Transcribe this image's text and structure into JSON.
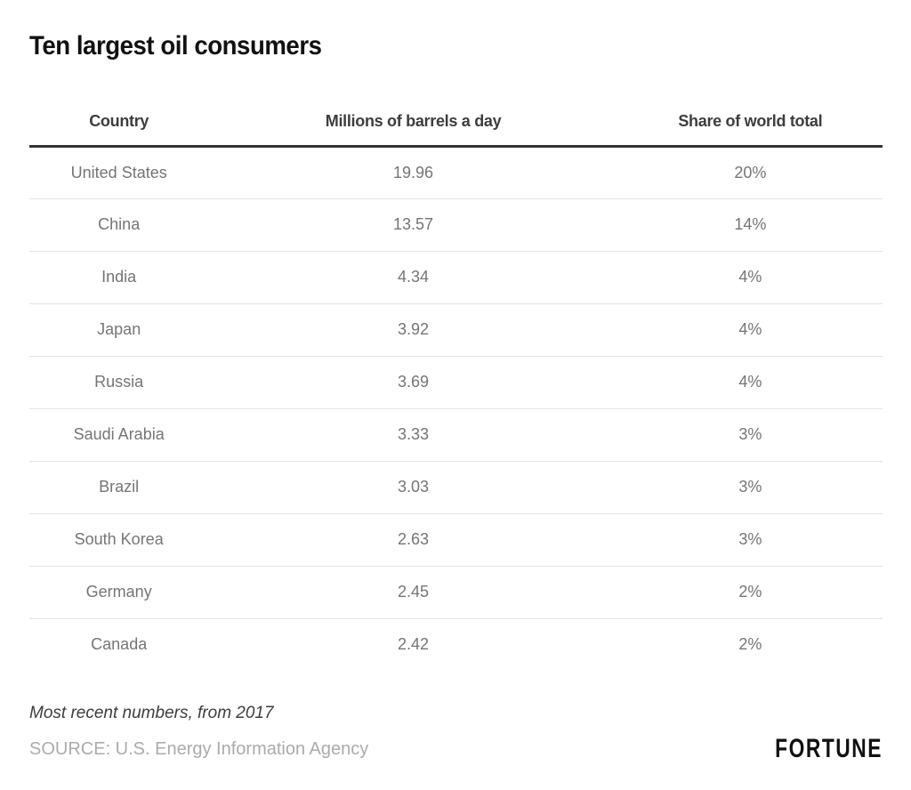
{
  "title": "Ten largest oil consumers",
  "chart_data": {
    "type": "table",
    "title": "Ten largest oil consumers",
    "columns": [
      "Country",
      "Millions of barrels a day",
      "Share of world total"
    ],
    "rows": [
      [
        "United States",
        "19.96",
        "20%"
      ],
      [
        "China",
        "13.57",
        "14%"
      ],
      [
        "India",
        "4.34",
        "4%"
      ],
      [
        "Japan",
        "3.92",
        "4%"
      ],
      [
        "Russia",
        "3.69",
        "4%"
      ],
      [
        "Saudi Arabia",
        "3.33",
        "3%"
      ],
      [
        "Brazil",
        "3.03",
        "3%"
      ],
      [
        "South Korea",
        "2.63",
        "3%"
      ],
      [
        "Germany",
        "2.45",
        "2%"
      ],
      [
        "Canada",
        "2.42",
        "2%"
      ]
    ]
  },
  "footer": {
    "note": "Most recent numbers, from 2017",
    "source": "SOURCE: U.S. Energy Information Agency",
    "brand": "FORTUNE"
  },
  "colors": {
    "background": "#ffffff",
    "title_text": "#111111",
    "header_text": "#3d3d3d",
    "header_rule": "#333333",
    "row_text": "#757575",
    "row_divider": "#e3e3e3",
    "note_text": "#3d3d3d",
    "source_text": "#ababab",
    "brand_text": "#111111"
  }
}
